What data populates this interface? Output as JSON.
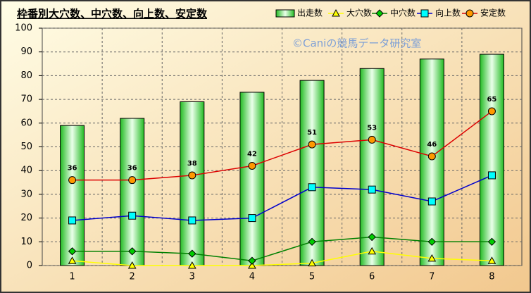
{
  "chart_data": {
    "type": "bar",
    "title": "枠番別大穴数、中穴数、向上数、安定数",
    "annotation": "©Caniの競馬データ研究室",
    "categories": [
      "1",
      "2",
      "3",
      "4",
      "5",
      "6",
      "7",
      "8"
    ],
    "series": [
      {
        "name": "出走数",
        "type": "bar",
        "color": "#33cc33",
        "values": [
          59,
          62,
          69,
          73,
          78,
          83,
          87,
          89
        ]
      },
      {
        "name": "大穴数",
        "type": "line",
        "marker": "triangle",
        "color": "#ffff00",
        "values": [
          2,
          0,
          0,
          0,
          1,
          6,
          3,
          2
        ]
      },
      {
        "name": "中穴数",
        "type": "line",
        "marker": "diamond",
        "color": "#008000",
        "values": [
          6,
          6,
          5,
          2,
          10,
          12,
          10,
          10
        ]
      },
      {
        "name": "向上数",
        "type": "line",
        "marker": "square",
        "color": "#0000cc",
        "values": [
          19,
          21,
          19,
          20,
          33,
          32,
          27,
          38
        ]
      },
      {
        "name": "安定数",
        "type": "line",
        "marker": "circle",
        "color": "#dd0000",
        "data_labels": true,
        "values": [
          36,
          36,
          38,
          42,
          51,
          53,
          46,
          65
        ]
      }
    ],
    "ylim": [
      0,
      100
    ],
    "yticks": [
      0,
      10,
      20,
      30,
      40,
      50,
      60,
      70,
      80,
      90,
      100
    ],
    "grid": true,
    "legend": "top-right"
  }
}
